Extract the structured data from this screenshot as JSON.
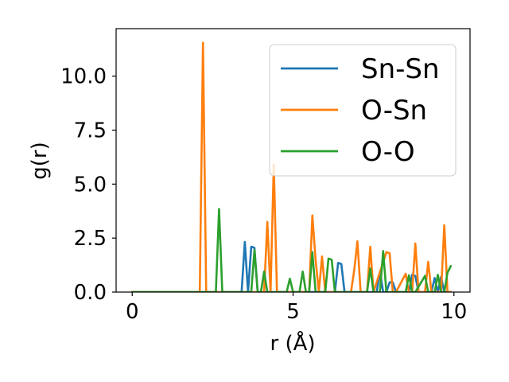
{
  "chart_data": {
    "type": "line",
    "title": "",
    "xlabel": "r (Å)",
    "ylabel": "g(r)",
    "xlim": [
      -0.5,
      10.5
    ],
    "ylim": [
      0,
      12.2
    ],
    "xticks": [
      0,
      5,
      10
    ],
    "xtick_labels": [
      "0",
      "5",
      "10"
    ],
    "yticks": [
      0.0,
      2.5,
      5.0,
      7.5,
      10.0
    ],
    "ytick_labels": [
      "0.0",
      "2.5",
      "5.0",
      "7.5",
      "10.0"
    ],
    "grid": false,
    "legend_position": "top-right",
    "series": [
      {
        "name": "Sn-Sn",
        "color": "#1f77b4",
        "x": [
          0,
          3.4,
          3.5,
          3.6,
          3.7,
          3.8,
          3.9,
          4.0,
          6.3,
          6.4,
          6.5,
          6.6,
          7.5,
          7.6,
          7.7,
          7.8,
          7.9,
          8.0,
          8.1,
          8.2,
          8.6,
          8.7,
          8.8,
          8.9,
          9.3,
          9.4,
          9.5,
          9.6,
          9.7,
          9.8,
          9.9
        ],
        "values": [
          0,
          0,
          2.32,
          0,
          2.1,
          2.05,
          0,
          0,
          0,
          1.35,
          1.3,
          0,
          0,
          0,
          0.95,
          0,
          0,
          0.45,
          0.45,
          0,
          0,
          0.8,
          0.75,
          0,
          0,
          0.65,
          0,
          0.7,
          0,
          0,
          0
        ]
      },
      {
        "name": "O-Sn",
        "color": "#ff7f0e",
        "x": [
          0,
          2.1,
          2.2,
          2.3,
          4.1,
          4.2,
          4.3,
          4.4,
          4.5,
          5.5,
          5.6,
          5.7,
          5.8,
          5.9,
          6.0,
          6.8,
          6.9,
          7.0,
          7.1,
          7.3,
          7.4,
          7.5,
          7.9,
          8.0,
          8.1,
          8.2,
          8.5,
          8.6,
          8.7,
          8.8,
          8.9,
          9.1,
          9.2,
          9.3,
          9.6,
          9.7,
          9.8,
          9.9
        ],
        "values": [
          0,
          0,
          11.55,
          0,
          0,
          3.25,
          0,
          5.9,
          0,
          0,
          3.55,
          1.5,
          0,
          1.65,
          0,
          0,
          1.0,
          2.35,
          0,
          0,
          2.1,
          0,
          1.85,
          1.8,
          0,
          0,
          0.85,
          0,
          0,
          2.25,
          0,
          0,
          1.4,
          0,
          0,
          3.1,
          0,
          0
        ]
      },
      {
        "name": "O-O",
        "color": "#2ca02c",
        "x": [
          0,
          2.6,
          2.7,
          2.8,
          3.7,
          3.8,
          3.9,
          4.0,
          4.1,
          4.2,
          4.8,
          4.9,
          5.0,
          5.1,
          5.2,
          5.3,
          5.4,
          5.5,
          5.6,
          5.7,
          5.8,
          5.9,
          6.0,
          6.1,
          6.2,
          6.3,
          6.4,
          7.3,
          7.4,
          7.5,
          7.6,
          7.7,
          7.8,
          7.9,
          8.0,
          8.1,
          8.5,
          8.6,
          8.7,
          8.8,
          9.1,
          9.2,
          9.3,
          9.4,
          9.5,
          9.6,
          9.7,
          9.8,
          9.9
        ],
        "values": [
          0,
          0,
          3.85,
          0,
          0,
          1.95,
          0,
          0,
          0.95,
          0,
          0,
          0.62,
          0,
          0,
          0,
          0.95,
          0,
          0,
          1.85,
          0,
          0,
          0,
          0,
          1.55,
          1.5,
          0,
          0,
          0,
          1.1,
          0,
          0,
          0,
          1.9,
          0,
          0,
          0,
          0,
          0.78,
          0,
          0,
          0.75,
          0,
          0,
          0,
          0.8,
          0,
          0,
          0.9,
          1.2
        ]
      }
    ]
  }
}
